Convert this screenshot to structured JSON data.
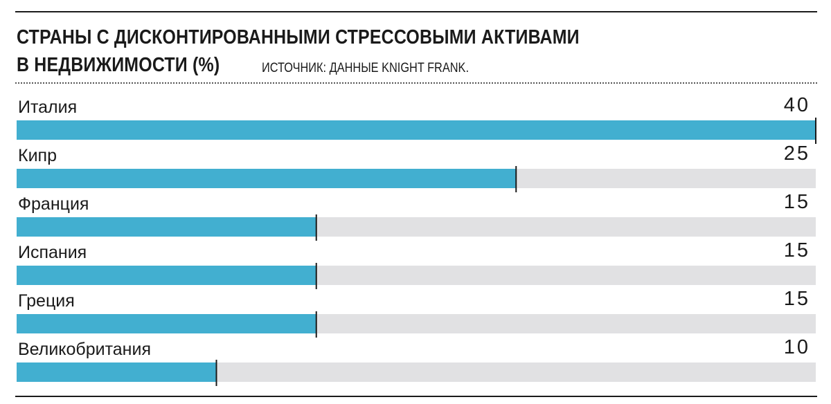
{
  "title_line1": "СТРАНЫ С ДИСКОНТИРОВАННЫМИ СТРЕССОВЫМИ АКТИВАМИ",
  "title_line2": "В НЕДВИЖИМОСТИ (%)",
  "source": "ИСТОЧНИК: ДАННЫЕ KNIGHT FRANK.",
  "colors": {
    "bar": "#42afd0",
    "track": "#e1e1e3",
    "marker": "#1a1a1a"
  },
  "chart_data": {
    "type": "bar",
    "orientation": "horizontal",
    "title": "СТРАНЫ С ДИСКОНТИРОВАННЫМИ СТРЕССОВЫМИ АКТИВАМИ В НЕДВИЖИМОСТИ (%)",
    "categories": [
      "Италия",
      "Кипр",
      "Франция",
      "Испания",
      "Греция",
      "Великобритания"
    ],
    "values": [
      40,
      25,
      15,
      15,
      15,
      10
    ],
    "xlim": [
      0,
      40
    ],
    "grid": false,
    "legend": "none"
  }
}
